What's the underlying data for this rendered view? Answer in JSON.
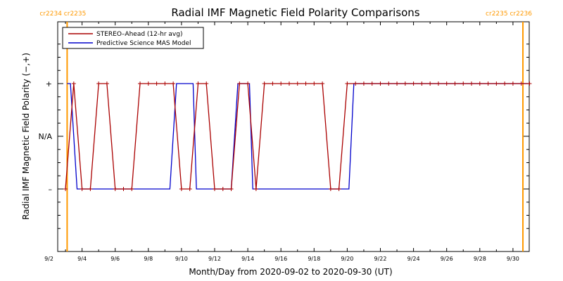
{
  "chart_data": {
    "type": "line",
    "title": "Radial IMF Magnetic Field Polarity Comparisons",
    "xlabel": "Month/Day from 2020-09-02 to 2020-09-30 (UT)",
    "ylabel": "Radial IMF Magnetic Field Polarity (−,+)",
    "xlim": [
      0,
      29
    ],
    "ylim": [
      -2,
      2
    ],
    "x_ticks": [
      {
        "x": 0,
        "label": "9/2"
      },
      {
        "x": 2,
        "label": "9/4"
      },
      {
        "x": 4,
        "label": "9/6"
      },
      {
        "x": 6,
        "label": "9/8"
      },
      {
        "x": 8,
        "label": "9/10"
      },
      {
        "x": 10,
        "label": "9/12"
      },
      {
        "x": 12,
        "label": "9/14"
      },
      {
        "x": 14,
        "label": "9/16"
      },
      {
        "x": 16,
        "label": "9/18"
      },
      {
        "x": 18,
        "label": "9/20"
      },
      {
        "x": 20,
        "label": "9/22"
      },
      {
        "x": 22,
        "label": "9/24"
      },
      {
        "x": 24,
        "label": "9/26"
      },
      {
        "x": 26,
        "label": "9/28"
      },
      {
        "x": 28,
        "label": "9/30"
      }
    ],
    "y_ticks": [
      {
        "y": 1,
        "label": "+"
      },
      {
        "y": 0,
        "label": "N/A"
      },
      {
        "y": -1,
        "label": "–"
      }
    ],
    "legend_position": "top-left",
    "carrington_markers": [
      {
        "x": 1.1,
        "labels": [
          "cr2234",
          "cr2235"
        ],
        "color": "#ff9900"
      },
      {
        "x": 28.6,
        "labels": [
          "cr2235",
          "cr2236"
        ],
        "color": "#ff9900"
      }
    ],
    "series": [
      {
        "name": "STEREO–Ahead (12-hr avg)",
        "color": "#aa0000",
        "markers": true,
        "points": [
          [
            1.0,
            -1
          ],
          [
            1.5,
            1
          ],
          [
            2.0,
            -1
          ],
          [
            2.5,
            -1
          ],
          [
            3.0,
            1
          ],
          [
            3.5,
            1
          ],
          [
            4.0,
            -1
          ],
          [
            4.5,
            -1
          ],
          [
            5.0,
            -1
          ],
          [
            5.5,
            1
          ],
          [
            6.0,
            1
          ],
          [
            6.5,
            1
          ],
          [
            7.0,
            1
          ],
          [
            7.5,
            1
          ],
          [
            8.0,
            -1
          ],
          [
            8.5,
            -1
          ],
          [
            9.0,
            1
          ],
          [
            9.5,
            1
          ],
          [
            10.0,
            -1
          ],
          [
            10.5,
            -1
          ],
          [
            11.0,
            -1
          ],
          [
            11.5,
            1
          ],
          [
            12.0,
            1
          ],
          [
            12.5,
            -1
          ],
          [
            13.0,
            1
          ],
          [
            13.5,
            1
          ],
          [
            14.0,
            1
          ],
          [
            14.5,
            1
          ],
          [
            15.0,
            1
          ],
          [
            15.5,
            1
          ],
          [
            16.0,
            1
          ],
          [
            16.5,
            1
          ],
          [
            17.0,
            -1
          ],
          [
            17.5,
            -1
          ],
          [
            18.0,
            1
          ],
          [
            18.5,
            1
          ],
          [
            19.0,
            1
          ],
          [
            19.5,
            1
          ],
          [
            20.0,
            1
          ],
          [
            20.5,
            1
          ],
          [
            21.0,
            1
          ],
          [
            21.5,
            1
          ],
          [
            22.0,
            1
          ],
          [
            22.5,
            1
          ],
          [
            23.0,
            1
          ],
          [
            23.5,
            1
          ],
          [
            24.0,
            1
          ],
          [
            24.5,
            1
          ],
          [
            25.0,
            1
          ],
          [
            25.5,
            1
          ],
          [
            26.0,
            1
          ],
          [
            26.5,
            1
          ],
          [
            27.0,
            1
          ],
          [
            27.5,
            1
          ],
          [
            28.0,
            1
          ],
          [
            28.5,
            1
          ],
          [
            29.0,
            1
          ]
        ]
      },
      {
        "name": "Predictive Science MAS Model",
        "color": "#0000cc",
        "markers": false,
        "points": [
          [
            1.1,
            1
          ],
          [
            1.3,
            1
          ],
          [
            1.7,
            -1
          ],
          [
            7.3,
            -1
          ],
          [
            7.7,
            1
          ],
          [
            8.7,
            1
          ],
          [
            8.9,
            -1
          ],
          [
            11.0,
            -1
          ],
          [
            11.4,
            1
          ],
          [
            12.1,
            1
          ],
          [
            12.3,
            -1
          ],
          [
            18.1,
            -1
          ],
          [
            18.4,
            1
          ],
          [
            28.9,
            1
          ]
        ]
      }
    ]
  }
}
